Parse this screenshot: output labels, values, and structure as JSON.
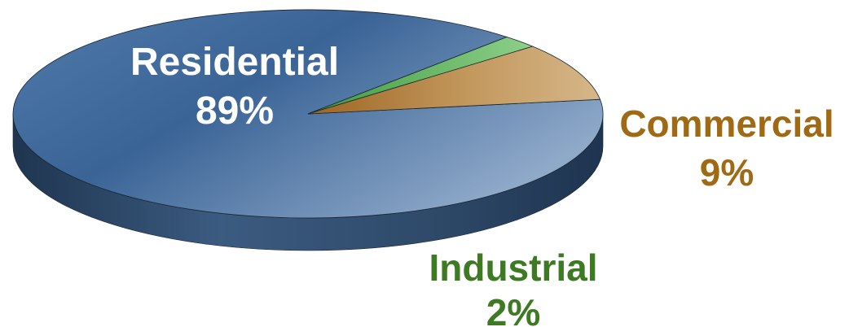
{
  "chart_data": {
    "type": "pie",
    "style": "3d",
    "categories": [
      "Residential",
      "Commercial",
      "Industrial"
    ],
    "values": [
      89,
      9,
      2
    ],
    "value_labels": [
      "89%",
      "9%",
      "2%"
    ],
    "colors": [
      "#3d6798",
      "#9b6a24",
      "#4d9b44"
    ],
    "label_colors": [
      "#ffffff",
      "#a06a14",
      "#3d7a23"
    ]
  }
}
